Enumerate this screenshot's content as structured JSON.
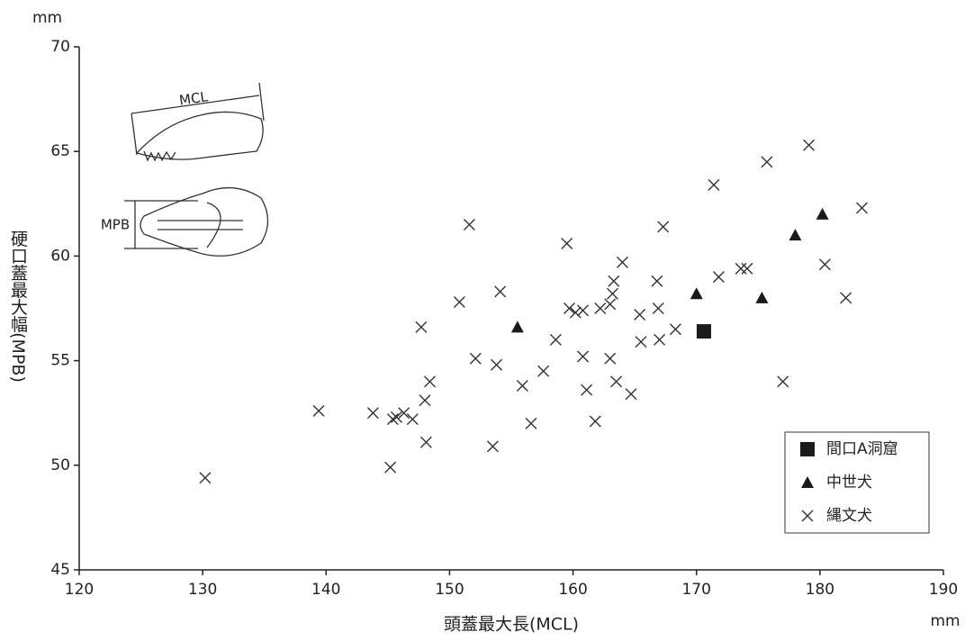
{
  "chart_data": {
    "type": "scatter",
    "x_label": "頭蓋最大長(MCL)",
    "y_label": "硬口蓋最大幅(MPB)",
    "x_unit": "mm",
    "y_unit": "mm",
    "annotations": [
      "MCL",
      "MPB"
    ],
    "xlim": [
      120,
      190
    ],
    "xticks": [
      120,
      130,
      140,
      150,
      160,
      170,
      180,
      190
    ],
    "ylim": [
      45,
      70
    ],
    "yticks": [
      45,
      50,
      55,
      60,
      65,
      70
    ],
    "grid": false,
    "legend": "lower right",
    "series": [
      {
        "name": "間口A洞窟",
        "marker": "square",
        "color": "#1a1a1a",
        "x": [
          170.6
        ],
        "values": [
          56.4
        ]
      },
      {
        "name": "中世犬",
        "marker": "triangle",
        "color": "#1a1a1a",
        "x": [
          155.5,
          170.0,
          175.3,
          178.0,
          180.2
        ],
        "values": [
          56.6,
          58.2,
          58.0,
          61.0,
          62.0
        ]
      },
      {
        "name": "縄文犬",
        "marker": "cross",
        "color": "#333333",
        "x": [
          130.2,
          139.4,
          143.8,
          145.4,
          145.7,
          146.3,
          147.0,
          148.0,
          148.4,
          148.1,
          145.2,
          147.7,
          150.8,
          151.6,
          152.1,
          154.1,
          153.8,
          153.5,
          155.9,
          156.6,
          157.6,
          158.6,
          159.5,
          159.7,
          160.2,
          160.8,
          160.8,
          161.1,
          161.8,
          162.2,
          163.0,
          163.2,
          163.3,
          163.0,
          163.5,
          164.0,
          164.7,
          165.4,
          165.5,
          166.8,
          166.9,
          167.0,
          167.3,
          168.3,
          171.4,
          171.8,
          173.6,
          174.1,
          175.7,
          177.0,
          179.1,
          180.4,
          182.1,
          183.4
        ],
        "values": [
          49.4,
          52.6,
          52.5,
          52.2,
          52.3,
          52.5,
          52.2,
          53.1,
          54.0,
          51.1,
          49.9,
          56.6,
          57.8,
          61.5,
          55.1,
          58.3,
          54.8,
          50.9,
          53.8,
          52.0,
          54.5,
          56.0,
          60.6,
          57.5,
          57.3,
          57.4,
          55.2,
          53.6,
          52.1,
          57.5,
          57.7,
          58.2,
          58.8,
          55.1,
          54.0,
          59.7,
          53.4,
          57.2,
          55.9,
          58.8,
          57.5,
          56.0,
          61.4,
          56.5,
          63.4,
          59.0,
          59.4,
          59.4,
          64.5,
          54.0,
          65.3,
          59.6,
          58.0,
          62.3
        ]
      }
    ]
  }
}
